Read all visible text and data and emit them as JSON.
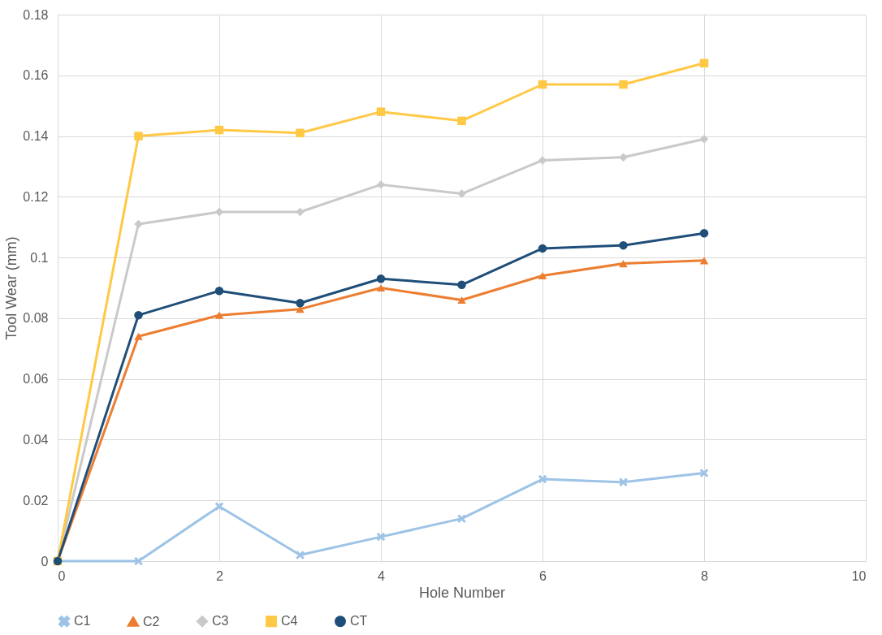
{
  "chart_data": {
    "type": "line",
    "xlabel": "Hole Number",
    "ylabel": "Tool Wear (mm)",
    "x": [
      0,
      1,
      2,
      3,
      4,
      5,
      6,
      7,
      8
    ],
    "series": [
      {
        "name": "C1",
        "color": "#9dc3e6",
        "marker": "cross",
        "values": [
          0,
          0,
          0.018,
          0.002,
          0.008,
          0.014,
          0.027,
          0.026,
          0.029
        ]
      },
      {
        "name": "C2",
        "color": "#ed7d31",
        "marker": "triangle",
        "values": [
          0,
          0.074,
          0.081,
          0.083,
          0.09,
          0.086,
          0.094,
          0.098,
          0.099
        ]
      },
      {
        "name": "C3",
        "color": "#c9c9c9",
        "marker": "diamond",
        "values": [
          0,
          0.111,
          0.115,
          0.115,
          0.124,
          0.121,
          0.132,
          0.133,
          0.139
        ]
      },
      {
        "name": "C4",
        "color": "#ffc845",
        "marker": "square",
        "values": [
          0,
          0.14,
          0.142,
          0.141,
          0.148,
          0.145,
          0.157,
          0.157,
          0.164
        ]
      },
      {
        "name": "CT",
        "color": "#1f4e79",
        "marker": "circle",
        "values": [
          0,
          0.081,
          0.089,
          0.085,
          0.093,
          0.091,
          0.103,
          0.104,
          0.108
        ]
      }
    ],
    "xlim": [
      0,
      10
    ],
    "xticks": [
      0,
      2,
      4,
      6,
      8,
      10
    ],
    "ylim": [
      0,
      0.18
    ],
    "yticks": [
      0,
      0.02,
      0.04,
      0.06,
      0.08,
      0.1,
      0.12,
      0.14,
      0.16,
      0.18
    ],
    "grid": true,
    "legend": "bottom",
    "line_style": "solid"
  }
}
